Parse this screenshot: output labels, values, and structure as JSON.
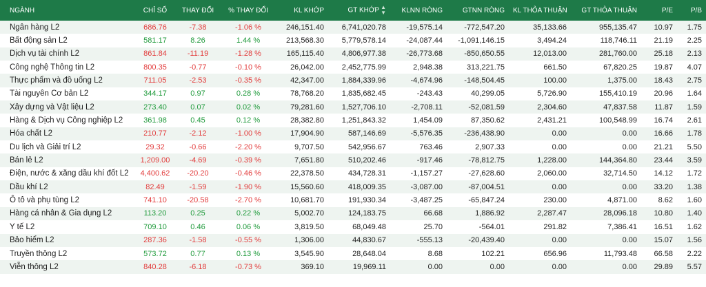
{
  "colors": {
    "header_bg": "#1e7a48",
    "up": "#1f9a3b",
    "down": "#e23b3b",
    "row_alt": "#eef4f0"
  },
  "headers": {
    "name": "NGÀNH",
    "chi_so": "CHỈ SỐ",
    "thay_doi": "THAY ĐỔI",
    "pct": "% THAY ĐỔI",
    "kl_khop": "KL KHỚP",
    "gt_khop": "GT KHỚP",
    "klnn_rong": "KLNN RÒNG",
    "gtnn_rong": "GTNN RÒNG",
    "kl_thoa_thuan": "KL THỎA THUẬN",
    "gt_thoa_thuan": "GT THỎA THUẬN",
    "pe": "P/E",
    "pb": "P/B",
    "sort_icon": "sort-icon"
  },
  "rows": [
    {
      "name": "Ngân hàng L2",
      "chi_so": "686.76",
      "thay_doi": "-7.38",
      "pct": "-1.06 %",
      "kl_khop": "246,151.40",
      "gt_khop": "6,741,020.78",
      "klnn_rong": "-19,575.14",
      "gtnn_rong": "-772,547.20",
      "kl_thoa_thuan": "35,133.66",
      "gt_thoa_thuan": "955,135.47",
      "pe": "10.97",
      "pb": "1.75",
      "dir": "down"
    },
    {
      "name": "Bất động sản L2",
      "chi_so": "581.17",
      "thay_doi": "8.26",
      "pct": "1.44 %",
      "kl_khop": "213,568.30",
      "gt_khop": "5,779,578.14",
      "klnn_rong": "-24,087.44",
      "gtnn_rong": "-1,091,146.15",
      "kl_thoa_thuan": "3,494.24",
      "gt_thoa_thuan": "118,746.11",
      "pe": "21.19",
      "pb": "2.25",
      "dir": "up"
    },
    {
      "name": "Dịch vụ tài chính L2",
      "chi_so": "861.84",
      "thay_doi": "-11.19",
      "pct": "-1.28 %",
      "kl_khop": "165,115.40",
      "gt_khop": "4,806,977.38",
      "klnn_rong": "-26,773.68",
      "gtnn_rong": "-850,650.55",
      "kl_thoa_thuan": "12,013.00",
      "gt_thoa_thuan": "281,760.00",
      "pe": "25.18",
      "pb": "2.13",
      "dir": "down"
    },
    {
      "name": "Công nghệ Thông tin L2",
      "chi_so": "800.35",
      "thay_doi": "-0.77",
      "pct": "-0.10 %",
      "kl_khop": "26,042.00",
      "gt_khop": "2,452,775.99",
      "klnn_rong": "2,948.38",
      "gtnn_rong": "313,221.75",
      "kl_thoa_thuan": "661.50",
      "gt_thoa_thuan": "67,820.25",
      "pe": "19.87",
      "pb": "4.07",
      "dir": "down"
    },
    {
      "name": "Thực phẩm và đồ uống L2",
      "chi_so": "711.05",
      "thay_doi": "-2.53",
      "pct": "-0.35 %",
      "kl_khop": "42,347.00",
      "gt_khop": "1,884,339.96",
      "klnn_rong": "-4,674.96",
      "gtnn_rong": "-148,504.45",
      "kl_thoa_thuan": "100.00",
      "gt_thoa_thuan": "1,375.00",
      "pe": "18.43",
      "pb": "2.75",
      "dir": "down"
    },
    {
      "name": "Tài nguyên Cơ bản L2",
      "chi_so": "344.17",
      "thay_doi": "0.97",
      "pct": "0.28 %",
      "kl_khop": "78,768.20",
      "gt_khop": "1,835,682.45",
      "klnn_rong": "-243.43",
      "gtnn_rong": "40,299.05",
      "kl_thoa_thuan": "5,726.90",
      "gt_thoa_thuan": "155,410.19",
      "pe": "20.96",
      "pb": "1.64",
      "dir": "up"
    },
    {
      "name": "Xây dựng và Vật liệu L2",
      "chi_so": "273.40",
      "thay_doi": "0.07",
      "pct": "0.02 %",
      "kl_khop": "79,281.60",
      "gt_khop": "1,527,706.10",
      "klnn_rong": "-2,708.11",
      "gtnn_rong": "-52,081.59",
      "kl_thoa_thuan": "2,304.60",
      "gt_thoa_thuan": "47,837.58",
      "pe": "11.87",
      "pb": "1.59",
      "dir": "up"
    },
    {
      "name": "Hàng & Dịch vụ Công nghiệp L2",
      "chi_so": "361.98",
      "thay_doi": "0.45",
      "pct": "0.12 %",
      "kl_khop": "28,382.80",
      "gt_khop": "1,251,843.32",
      "klnn_rong": "1,454.09",
      "gtnn_rong": "87,350.62",
      "kl_thoa_thuan": "2,431.21",
      "gt_thoa_thuan": "100,548.99",
      "pe": "16.74",
      "pb": "2.61",
      "dir": "up"
    },
    {
      "name": "Hóa chất L2",
      "chi_so": "210.77",
      "thay_doi": "-2.12",
      "pct": "-1.00 %",
      "kl_khop": "17,904.90",
      "gt_khop": "587,146.69",
      "klnn_rong": "-5,576.35",
      "gtnn_rong": "-236,438.90",
      "kl_thoa_thuan": "0.00",
      "gt_thoa_thuan": "0.00",
      "pe": "16.66",
      "pb": "1.78",
      "dir": "down"
    },
    {
      "name": "Du lịch và Giải trí L2",
      "chi_so": "29.32",
      "thay_doi": "-0.66",
      "pct": "-2.20 %",
      "kl_khop": "9,707.50",
      "gt_khop": "542,956.67",
      "klnn_rong": "763.46",
      "gtnn_rong": "2,907.33",
      "kl_thoa_thuan": "0.00",
      "gt_thoa_thuan": "0.00",
      "pe": "21.21",
      "pb": "5.50",
      "dir": "down"
    },
    {
      "name": "Bán lẻ L2",
      "chi_so": "1,209.00",
      "thay_doi": "-4.69",
      "pct": "-0.39 %",
      "kl_khop": "7,651.80",
      "gt_khop": "510,202.46",
      "klnn_rong": "-917.46",
      "gtnn_rong": "-78,812.75",
      "kl_thoa_thuan": "1,228.00",
      "gt_thoa_thuan": "144,364.80",
      "pe": "23.44",
      "pb": "3.59",
      "dir": "down"
    },
    {
      "name": "Điện, nước & xăng dầu khí đốt L2",
      "chi_so": "4,400.62",
      "thay_doi": "-20.20",
      "pct": "-0.46 %",
      "kl_khop": "22,378.50",
      "gt_khop": "434,728.31",
      "klnn_rong": "-1,157.27",
      "gtnn_rong": "-27,628.60",
      "kl_thoa_thuan": "2,060.00",
      "gt_thoa_thuan": "32,714.50",
      "pe": "14.12",
      "pb": "1.72",
      "dir": "down"
    },
    {
      "name": "Dầu khí L2",
      "chi_so": "82.49",
      "thay_doi": "-1.59",
      "pct": "-1.90 %",
      "kl_khop": "15,560.60",
      "gt_khop": "418,009.35",
      "klnn_rong": "-3,087.00",
      "gtnn_rong": "-87,004.51",
      "kl_thoa_thuan": "0.00",
      "gt_thoa_thuan": "0.00",
      "pe": "33.20",
      "pb": "1.38",
      "dir": "down"
    },
    {
      "name": "Ô tô và phụ tùng L2",
      "chi_so": "741.10",
      "thay_doi": "-20.58",
      "pct": "-2.70 %",
      "kl_khop": "10,681.70",
      "gt_khop": "191,930.34",
      "klnn_rong": "-3,487.25",
      "gtnn_rong": "-65,847.24",
      "kl_thoa_thuan": "230.00",
      "gt_thoa_thuan": "4,871.00",
      "pe": "8.62",
      "pb": "1.60",
      "dir": "down"
    },
    {
      "name": "Hàng cá nhân & Gia dụng L2",
      "chi_so": "113.20",
      "thay_doi": "0.25",
      "pct": "0.22 %",
      "kl_khop": "5,002.70",
      "gt_khop": "124,183.75",
      "klnn_rong": "66.68",
      "gtnn_rong": "1,886.92",
      "kl_thoa_thuan": "2,287.47",
      "gt_thoa_thuan": "28,096.18",
      "pe": "10.80",
      "pb": "1.40",
      "dir": "up"
    },
    {
      "name": "Y tế L2",
      "chi_so": "709.10",
      "thay_doi": "0.46",
      "pct": "0.06 %",
      "kl_khop": "3,819.50",
      "gt_khop": "68,049.48",
      "klnn_rong": "25.70",
      "gtnn_rong": "-564.01",
      "kl_thoa_thuan": "291.82",
      "gt_thoa_thuan": "7,386.41",
      "pe": "16.51",
      "pb": "1.62",
      "dir": "up"
    },
    {
      "name": "Bảo hiểm L2",
      "chi_so": "287.36",
      "thay_doi": "-1.58",
      "pct": "-0.55 %",
      "kl_khop": "1,306.00",
      "gt_khop": "44,830.67",
      "klnn_rong": "-555.13",
      "gtnn_rong": "-20,439.40",
      "kl_thoa_thuan": "0.00",
      "gt_thoa_thuan": "0.00",
      "pe": "15.07",
      "pb": "1.56",
      "dir": "down"
    },
    {
      "name": "Truyền thông L2",
      "chi_so": "573.72",
      "thay_doi": "0.77",
      "pct": "0.13 %",
      "kl_khop": "3,545.90",
      "gt_khop": "28,648.04",
      "klnn_rong": "8.68",
      "gtnn_rong": "102.21",
      "kl_thoa_thuan": "656.96",
      "gt_thoa_thuan": "11,793.48",
      "pe": "66.58",
      "pb": "2.22",
      "dir": "up"
    },
    {
      "name": "Viễn thông L2",
      "chi_so": "840.28",
      "thay_doi": "-6.18",
      "pct": "-0.73 %",
      "kl_khop": "369.10",
      "gt_khop": "19,969.11",
      "klnn_rong": "0.00",
      "gtnn_rong": "0.00",
      "kl_thoa_thuan": "0.00",
      "gt_thoa_thuan": "0.00",
      "pe": "29.89",
      "pb": "5.57",
      "dir": "down"
    }
  ]
}
